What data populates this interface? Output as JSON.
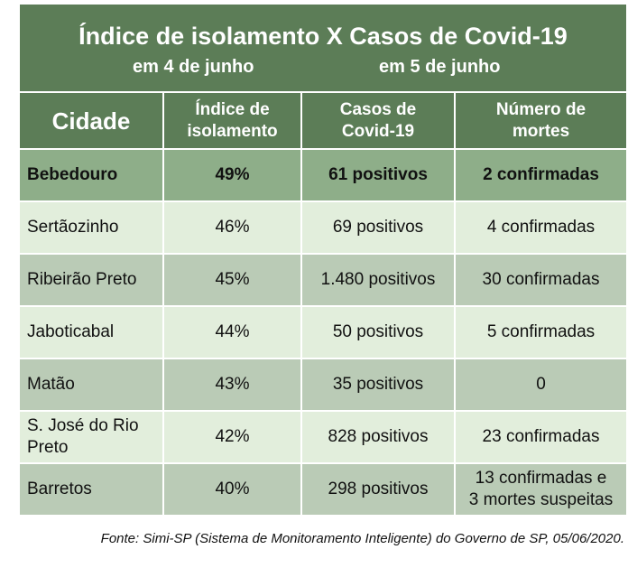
{
  "header": {
    "title": "Índice de isolamento X Casos de Covid-19",
    "subtitle_left": "em 4 de junho",
    "subtitle_right": "em 5 de junho"
  },
  "table": {
    "columns": [
      [
        "Cidade"
      ],
      [
        "Índice de",
        "isolamento"
      ],
      [
        "Casos de",
        "Covid-19"
      ],
      [
        "Número de",
        "mortes"
      ]
    ],
    "rows": [
      [
        [
          "Bebedouro"
        ],
        [
          "49%"
        ],
        [
          "61 positivos"
        ],
        [
          "2 confirmadas"
        ]
      ],
      [
        [
          "Sertãozinho"
        ],
        [
          "46%"
        ],
        [
          "69 positivos"
        ],
        [
          "4 confirmadas"
        ]
      ],
      [
        [
          "Ribeirão Preto"
        ],
        [
          "45%"
        ],
        [
          "1.480 positivos"
        ],
        [
          "30 confirmadas"
        ]
      ],
      [
        [
          "Jaboticabal"
        ],
        [
          "44%"
        ],
        [
          "50 positivos"
        ],
        [
          "5 confirmadas"
        ]
      ],
      [
        [
          "Matão"
        ],
        [
          "43%"
        ],
        [
          "35 positivos"
        ],
        [
          "0"
        ]
      ],
      [
        [
          "S. José do Rio",
          "Preto"
        ],
        [
          "42%"
        ],
        [
          "828 positivos"
        ],
        [
          "23 confirmadas"
        ]
      ],
      [
        [
          "Barretos"
        ],
        [
          "40%"
        ],
        [
          "298 positivos"
        ],
        [
          "13 confirmadas e",
          "3 mortes suspeitas"
        ]
      ]
    ]
  },
  "source": "Fonte: Simi-SP (Sistema de Monitoramento Inteligente) do Governo de SP, 05/06/2020."
}
